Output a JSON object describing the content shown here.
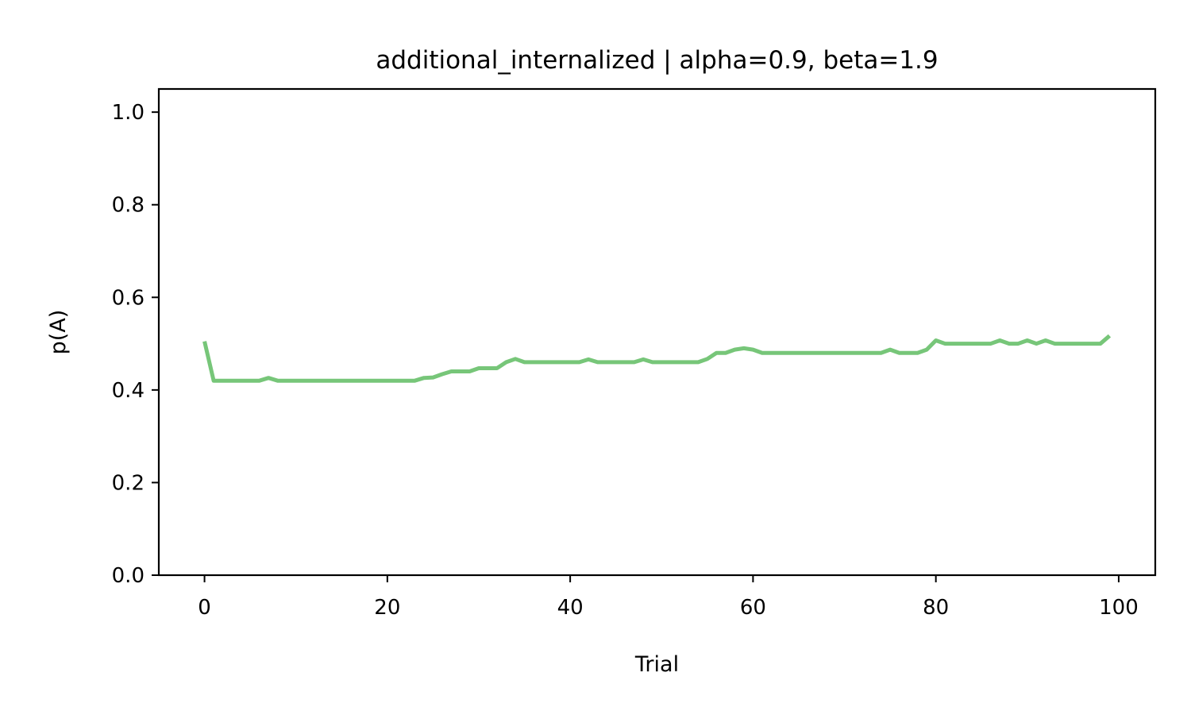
{
  "chart_data": {
    "type": "line",
    "title": "additional_internalized | alpha=0.9, beta=1.9",
    "xlabel": "Trial",
    "ylabel": "p(A)",
    "xlim": [
      -5,
      104
    ],
    "ylim": [
      0.0,
      1.05
    ],
    "xticks": [
      0,
      20,
      40,
      60,
      80,
      100
    ],
    "xtick_labels": [
      "0",
      "20",
      "40",
      "60",
      "80",
      "100"
    ],
    "yticks": [
      0.0,
      0.2,
      0.4,
      0.6,
      0.8,
      1.0
    ],
    "ytick_labels": [
      "0.0",
      "0.2",
      "0.4",
      "0.6",
      "0.8",
      "1.0"
    ],
    "grid": false,
    "legend": "none",
    "series": [
      {
        "color": "#77c679",
        "x": [
          0,
          1,
          2,
          3,
          4,
          5,
          6,
          7,
          8,
          9,
          10,
          11,
          12,
          13,
          14,
          15,
          16,
          17,
          18,
          19,
          20,
          21,
          22,
          23,
          24,
          25,
          26,
          27,
          28,
          29,
          30,
          31,
          32,
          33,
          34,
          35,
          36,
          37,
          38,
          39,
          40,
          41,
          42,
          43,
          44,
          45,
          46,
          47,
          48,
          49,
          50,
          51,
          52,
          53,
          54,
          55,
          56,
          57,
          58,
          59,
          60,
          61,
          62,
          63,
          64,
          65,
          66,
          67,
          68,
          69,
          70,
          71,
          72,
          73,
          74,
          75,
          76,
          77,
          78,
          79,
          80,
          81,
          82,
          83,
          84,
          85,
          86,
          87,
          88,
          89,
          90,
          91,
          92,
          93,
          94,
          95,
          96,
          97,
          98,
          99
        ],
        "y": [
          0.505,
          0.42,
          0.42,
          0.42,
          0.42,
          0.42,
          0.42,
          0.426,
          0.42,
          0.42,
          0.42,
          0.42,
          0.42,
          0.42,
          0.42,
          0.42,
          0.42,
          0.42,
          0.42,
          0.42,
          0.42,
          0.42,
          0.42,
          0.42,
          0.426,
          0.427,
          0.434,
          0.44,
          0.44,
          0.44,
          0.447,
          0.447,
          0.447,
          0.46,
          0.467,
          0.46,
          0.46,
          0.46,
          0.46,
          0.46,
          0.46,
          0.46,
          0.466,
          0.46,
          0.46,
          0.46,
          0.46,
          0.46,
          0.466,
          0.46,
          0.46,
          0.46,
          0.46,
          0.46,
          0.46,
          0.467,
          0.48,
          0.48,
          0.487,
          0.49,
          0.487,
          0.48,
          0.48,
          0.48,
          0.48,
          0.48,
          0.48,
          0.48,
          0.48,
          0.48,
          0.48,
          0.48,
          0.48,
          0.48,
          0.48,
          0.487,
          0.48,
          0.48,
          0.48,
          0.487,
          0.507,
          0.5,
          0.5,
          0.5,
          0.5,
          0.5,
          0.5,
          0.507,
          0.5,
          0.5,
          0.507,
          0.5,
          0.507,
          0.5,
          0.5,
          0.5,
          0.5,
          0.5,
          0.5,
          0.517
        ]
      }
    ]
  }
}
